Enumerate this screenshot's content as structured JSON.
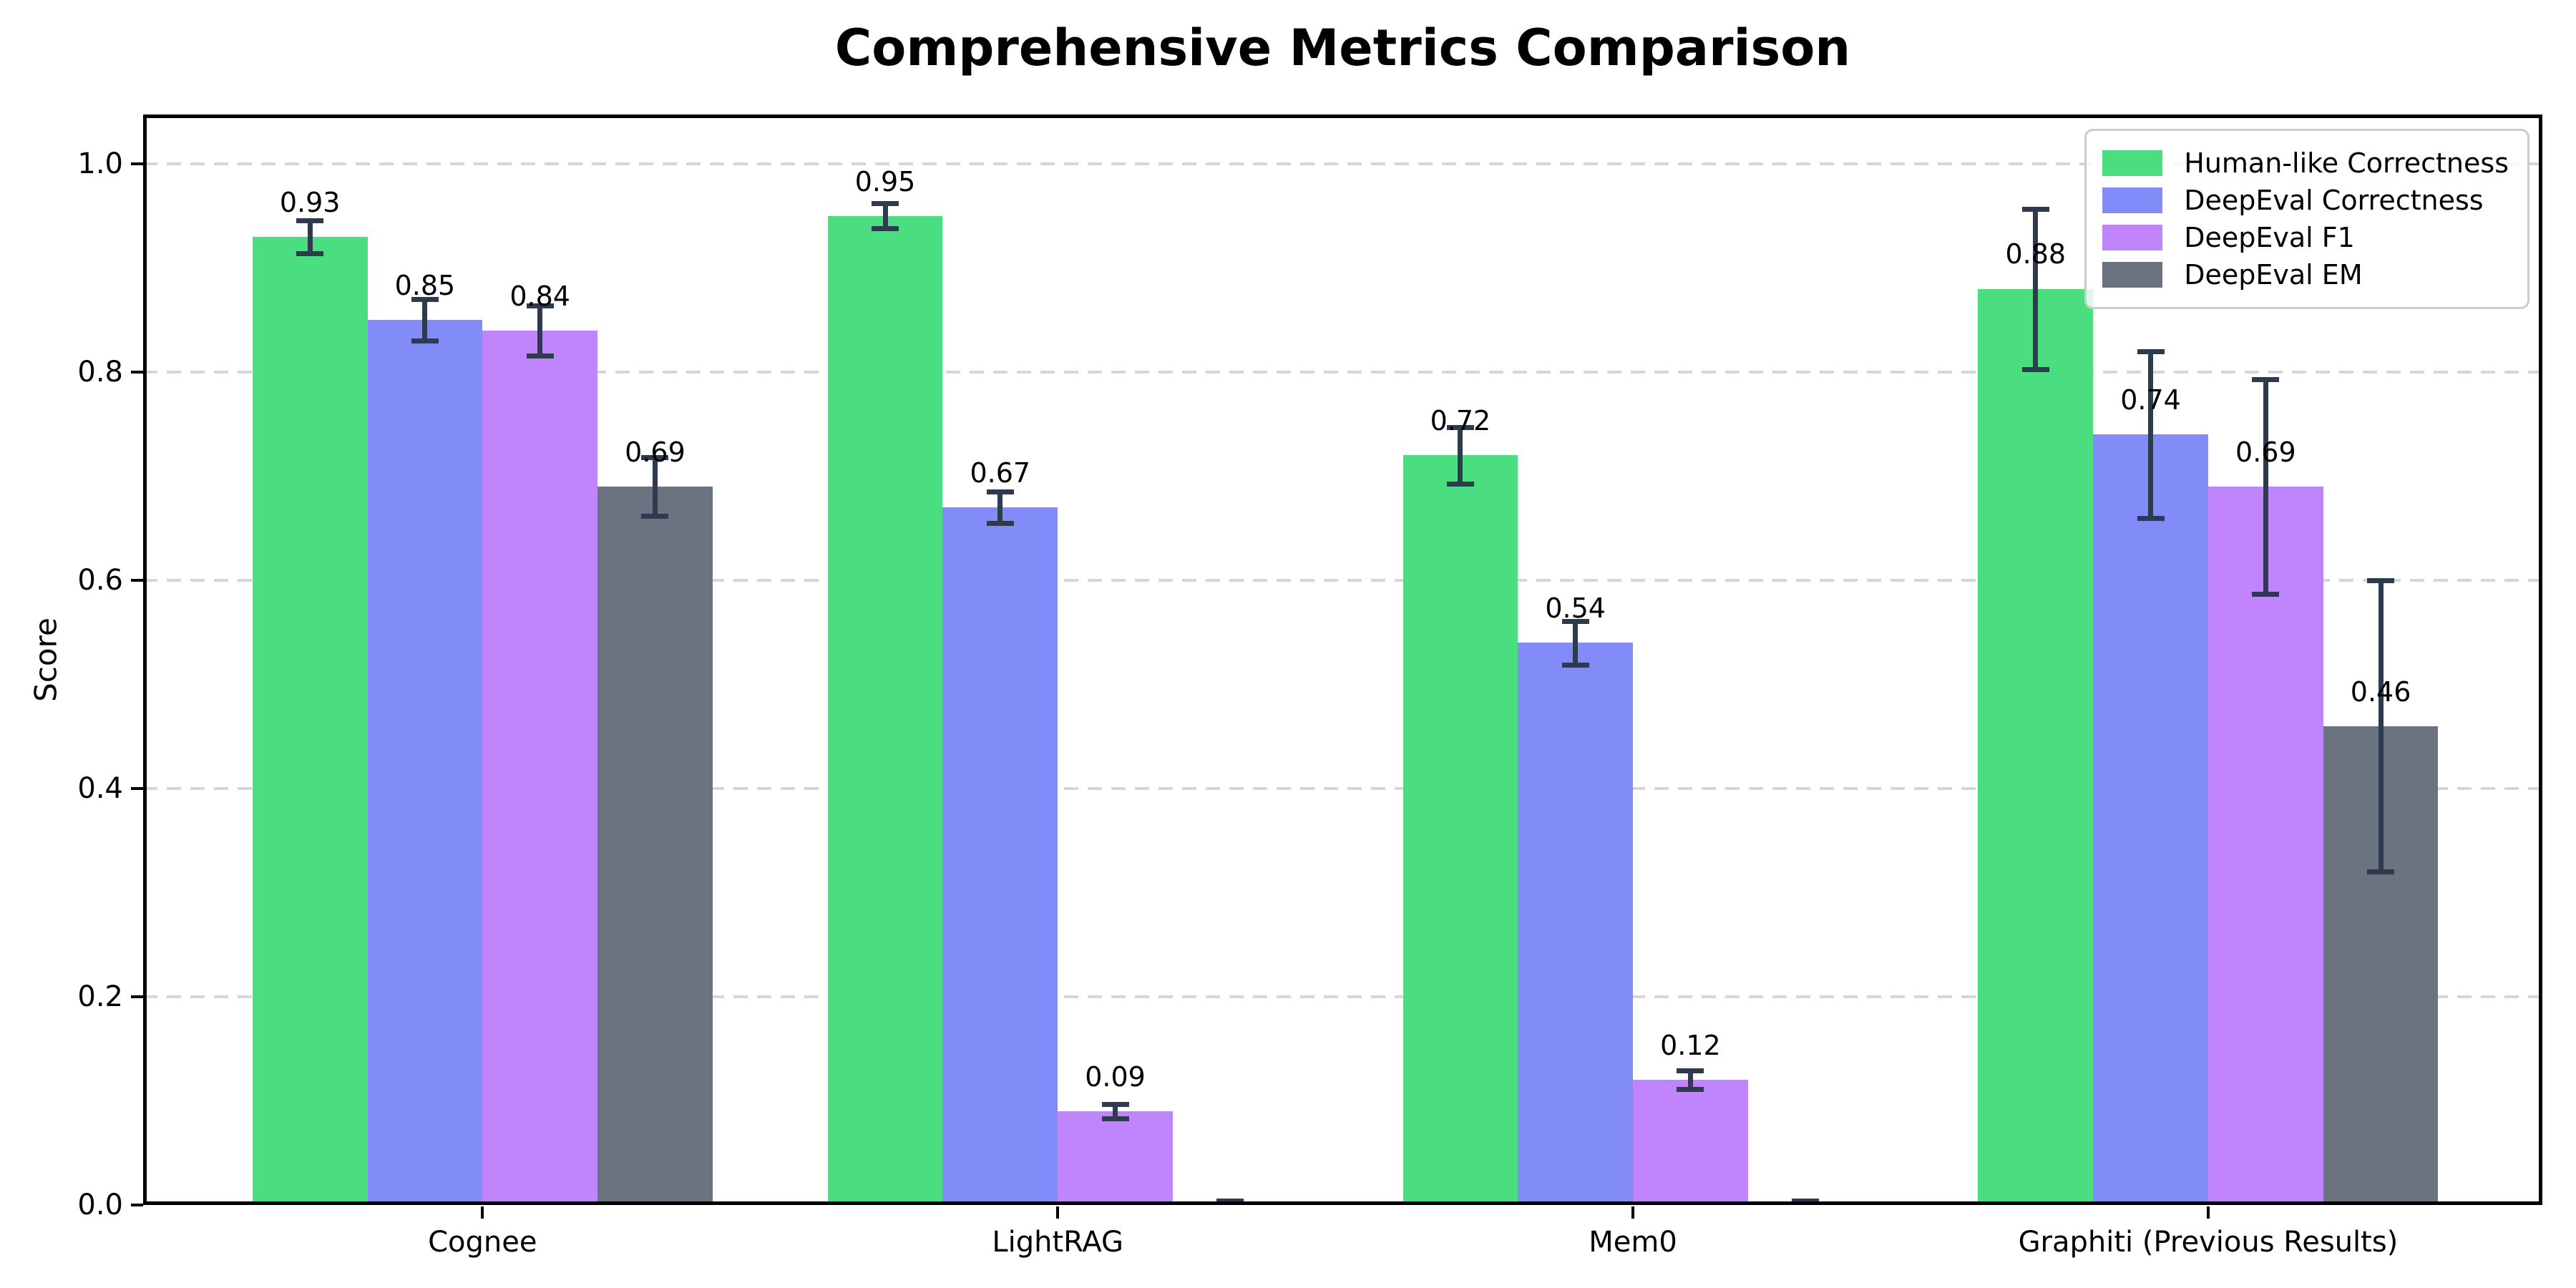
{
  "chart_data": {
    "type": "bar",
    "title": "Comprehensive Metrics Comparison",
    "xlabel": "",
    "ylabel": "Score",
    "categories": [
      "Cognee",
      "LightRAG",
      "Mem0",
      "Graphiti (Previous Results)"
    ],
    "series": [
      {
        "name": "Human-like Correctness",
        "color": "#4ade80",
        "values": [
          0.93,
          0.95,
          0.72,
          0.88
        ],
        "labels": [
          "0.93",
          "0.95",
          "0.72",
          "0.88"
        ],
        "errors": [
          0.016,
          0.012,
          0.027,
          0.077
        ]
      },
      {
        "name": "DeepEval Correctness",
        "color": "#818cf8",
        "values": [
          0.85,
          0.67,
          0.54,
          0.74
        ],
        "labels": [
          "0.85",
          "0.67",
          "0.54",
          "0.74"
        ],
        "errors": [
          0.02,
          0.015,
          0.021,
          0.08
        ]
      },
      {
        "name": "DeepEval F1",
        "color": "#c084fc",
        "values": [
          0.84,
          0.09,
          0.12,
          0.69
        ],
        "labels": [
          "0.84",
          "0.09",
          "0.12",
          "0.69"
        ],
        "errors": [
          0.024,
          0.007,
          0.009,
          0.103
        ]
      },
      {
        "name": "DeepEval EM",
        "color": "#6b7280",
        "values": [
          0.69,
          0.0,
          0.0,
          0.46
        ],
        "labels": [
          "0.69",
          null,
          null,
          "0.46"
        ],
        "errors": [
          0.028,
          0.004,
          0.004,
          0.14
        ]
      }
    ],
    "yticks": [
      "0.0",
      "0.2",
      "0.4",
      "0.6",
      "0.8",
      "1.0"
    ],
    "ylim": [
      0.0,
      1.05
    ],
    "grid": "horizontal dashed",
    "legend_position": "upper right",
    "error_bar_color": "#2e3b4e",
    "gridline_color": "#d6d6d6"
  }
}
